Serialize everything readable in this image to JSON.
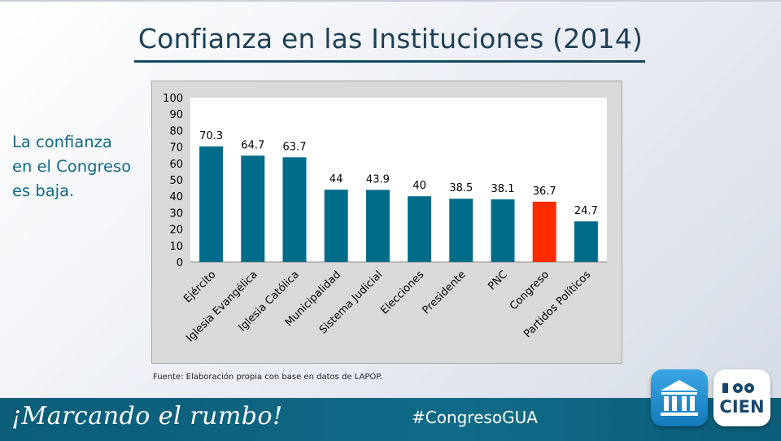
{
  "title": "Confianza en las Instituciones (2014)",
  "side_text": [
    "La confianza",
    "en el Congreso",
    "es baja."
  ],
  "source": "Fuente: Elaboración propia con base en datos de LAPOP.",
  "footer": {
    "slogan": "¡Marcando el rumbo!",
    "hashtag": "#CongresoGUA",
    "logo_cien_text": "CIEN"
  },
  "colors": {
    "bar": "#006c8a",
    "highlight": "#ff2a00",
    "title": "#1e3f55",
    "side_text": "#136a84",
    "footer": "#0f6b89"
  },
  "chart_data": {
    "type": "bar",
    "title": "",
    "xlabel": "",
    "ylabel": "",
    "categories": [
      "Ejército",
      "Iglesia Evangélica",
      "Iglesia Católica",
      "Municipalidad",
      "Sistema Judicial",
      "Elecciones",
      "Presidente",
      "PNC",
      "Congreso",
      "Partidos Políticos"
    ],
    "values": [
      70.3,
      64.7,
      63.7,
      44,
      43.9,
      40,
      38.5,
      38.1,
      36.7,
      24.7
    ],
    "value_labels": [
      "70.3",
      "64.7",
      "63.7",
      "44",
      "43.9",
      "40",
      "38.5",
      "38.1",
      "36.7",
      "24.7"
    ],
    "highlight_category": "Congreso",
    "ylim": [
      0,
      100
    ],
    "yticks": [
      0,
      10,
      20,
      30,
      40,
      50,
      60,
      70,
      80,
      90,
      100
    ],
    "grid": false,
    "legend": "none"
  }
}
